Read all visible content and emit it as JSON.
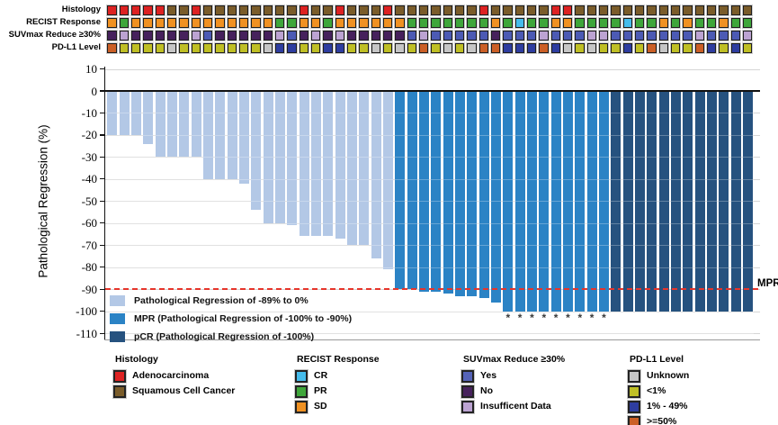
{
  "annotation_tracks": {
    "rows": [
      {
        "id": "histology",
        "label": "Histology",
        "values": [
          "A",
          "A",
          "A",
          "A",
          "A",
          "S",
          "S",
          "A",
          "S",
          "S",
          "S",
          "S",
          "S",
          "S",
          "S",
          "S",
          "A",
          "S",
          "S",
          "A",
          "S",
          "S",
          "S",
          "A",
          "S",
          "S",
          "S",
          "S",
          "S",
          "S",
          "S",
          "A",
          "S",
          "S",
          "S",
          "S",
          "S",
          "A",
          "A",
          "S",
          "S",
          "S",
          "S",
          "S",
          "S",
          "S",
          "S",
          "S",
          "S",
          "S",
          "S",
          "S",
          "S",
          "S"
        ]
      },
      {
        "id": "recist",
        "label": "RECIST Response",
        "values": [
          "SD",
          "PR",
          "SD",
          "SD",
          "SD",
          "SD",
          "SD",
          "SD",
          "SD",
          "SD",
          "SD",
          "SD",
          "SD",
          "SD",
          "PR",
          "PR",
          "SD",
          "SD",
          "PR",
          "SD",
          "SD",
          "SD",
          "SD",
          "SD",
          "SD",
          "PR",
          "PR",
          "PR",
          "PR",
          "PR",
          "PR",
          "PR",
          "SD",
          "PR",
          "CR",
          "PR",
          "PR",
          "SD",
          "SD",
          "PR",
          "PR",
          "PR",
          "PR",
          "CR",
          "PR",
          "PR",
          "SD",
          "PR",
          "SD",
          "PR",
          "PR",
          "SD",
          "PR",
          "PR"
        ]
      },
      {
        "id": "suvmax",
        "label": "SUVmax Reduce ≥30%",
        "values": [
          "N",
          "I",
          "N",
          "N",
          "N",
          "N",
          "N",
          "I",
          "Y",
          "N",
          "N",
          "N",
          "N",
          "N",
          "I",
          "Y",
          "N",
          "I",
          "N",
          "I",
          "N",
          "N",
          "N",
          "N",
          "N",
          "Y",
          "I",
          "Y",
          "Y",
          "Y",
          "Y",
          "Y",
          "N",
          "Y",
          "Y",
          "Y",
          "I",
          "Y",
          "Y",
          "Y",
          "I",
          "I",
          "Y",
          "Y",
          "Y",
          "Y",
          "Y",
          "Y",
          "Y",
          "I",
          "Y",
          "Y",
          "Y",
          "I"
        ]
      },
      {
        "id": "pdl1",
        "label": "PD-L1 Level",
        "values": [
          "H",
          "L",
          "L",
          "L",
          "L",
          "U",
          "L",
          "L",
          "L",
          "L",
          "L",
          "L",
          "L",
          "U",
          "M",
          "M",
          "L",
          "L",
          "M",
          "M",
          "L",
          "L",
          "U",
          "L",
          "U",
          "L",
          "H",
          "L",
          "U",
          "L",
          "U",
          "H",
          "H",
          "M",
          "M",
          "M",
          "H",
          "M",
          "U",
          "L",
          "U",
          "L",
          "L",
          "M",
          "L",
          "H",
          "U",
          "L",
          "L",
          "H",
          "M",
          "L",
          "M",
          "L"
        ]
      }
    ],
    "colors": {
      "histology": {
        "A": "#DD2222",
        "S": "#7A5C2A"
      },
      "recist": {
        "CR": "#45BCEC",
        "PR": "#3EA63A",
        "SD": "#F09122"
      },
      "suvmax": {
        "Y": "#4C5AB4",
        "N": "#46215C",
        "I": "#BCA3D2"
      },
      "pdl1": {
        "U": "#C6C6C6",
        "L": "#BFBF25",
        "M": "#2E3DA0",
        "H": "#CB5F26"
      }
    }
  },
  "chart_data": {
    "type": "bar",
    "title": "",
    "xlabel": "",
    "x_axis_note": "54 patients, unlabeled x axis",
    "ylabel": "Pathological Regression (%)",
    "ylim": [
      -110,
      10
    ],
    "yticks": [
      10,
      0,
      -10,
      -20,
      -30,
      -40,
      -50,
      -60,
      -70,
      -80,
      -90,
      -100,
      -110
    ],
    "grid": "horizontal, light gray",
    "values": [
      -20,
      -20,
      -20,
      -24,
      -30,
      -30,
      -30,
      -30,
      -40,
      -40,
      -40,
      -42,
      -54,
      -60,
      -60,
      -61,
      -66,
      -66,
      -66,
      -67,
      -70,
      -70,
      -76,
      -81,
      -90,
      -90,
      -91,
      -91,
      -92,
      -93,
      -93,
      -94,
      -96,
      -100,
      -100,
      -100,
      -100,
      -100,
      -100,
      -100,
      -100,
      -100,
      -100,
      -100,
      -100,
      -100,
      -100,
      -100,
      -100,
      -100,
      -100,
      -100,
      -100,
      -100
    ],
    "groups": [
      "reg",
      "reg",
      "reg",
      "reg",
      "reg",
      "reg",
      "reg",
      "reg",
      "reg",
      "reg",
      "reg",
      "reg",
      "reg",
      "reg",
      "reg",
      "reg",
      "reg",
      "reg",
      "reg",
      "reg",
      "reg",
      "reg",
      "reg",
      "reg",
      "mpr",
      "mpr",
      "mpr",
      "mpr",
      "mpr",
      "mpr",
      "mpr",
      "mpr",
      "mpr",
      "mpr",
      "mpr",
      "mpr",
      "mpr",
      "mpr",
      "mpr",
      "mpr",
      "mpr",
      "mpr",
      "pcr",
      "pcr",
      "pcr",
      "pcr",
      "pcr",
      "pcr",
      "pcr",
      "pcr",
      "pcr",
      "pcr",
      "pcr",
      "pcr"
    ],
    "group_colors": {
      "reg": "#B3C8E6",
      "mpr": "#2B83C5",
      "pcr": "#26527F"
    },
    "asterisk_indices": [
      34,
      35,
      36,
      37,
      38,
      39,
      40,
      41,
      42
    ],
    "asterisk_symbol": "*",
    "reference_line": {
      "value": -90,
      "label": "MPR",
      "color": "#E6352B",
      "style": "dashed"
    }
  },
  "plot_legend": {
    "items": [
      {
        "label": "Pathological Regression of -89% to 0%",
        "color": "#B3C8E6"
      },
      {
        "label": "MPR (Pathological Regression of -100% to -90%)",
        "color": "#2B83C5"
      },
      {
        "label": "pCR (Pathological Regression of -100%)",
        "color": "#26527F"
      }
    ]
  },
  "bottom_legend": {
    "groups": [
      {
        "id": "histology",
        "title": "Histology",
        "items": [
          {
            "label": "Adenocarcinoma",
            "color": "#DD2222"
          },
          {
            "label": "Squamous Cell Cancer",
            "color": "#7A5C2A"
          }
        ]
      },
      {
        "id": "recist",
        "title": "RECIST Response",
        "items": [
          {
            "label": "CR",
            "color": "#45BCEC"
          },
          {
            "label": "PR",
            "color": "#3EA63A"
          },
          {
            "label": "SD",
            "color": "#F09122"
          }
        ]
      },
      {
        "id": "suvmax",
        "title": "SUVmax Reduce ≥30%",
        "items": [
          {
            "label": "Yes",
            "color": "#5563B8"
          },
          {
            "label": "No",
            "color": "#46215C"
          },
          {
            "label": "Insufficent Data",
            "color": "#BCA3D2"
          }
        ]
      },
      {
        "id": "pdl1",
        "title": "PD-L1 Level",
        "items": [
          {
            "label": "Unknown",
            "color": "#C6C6C6"
          },
          {
            "label": "<1%",
            "color": "#BFBF25"
          },
          {
            "label": "1% - 49%",
            "color": "#2E3DA0"
          },
          {
            "label": ">=50%",
            "color": "#CB5F26"
          }
        ]
      }
    ]
  }
}
